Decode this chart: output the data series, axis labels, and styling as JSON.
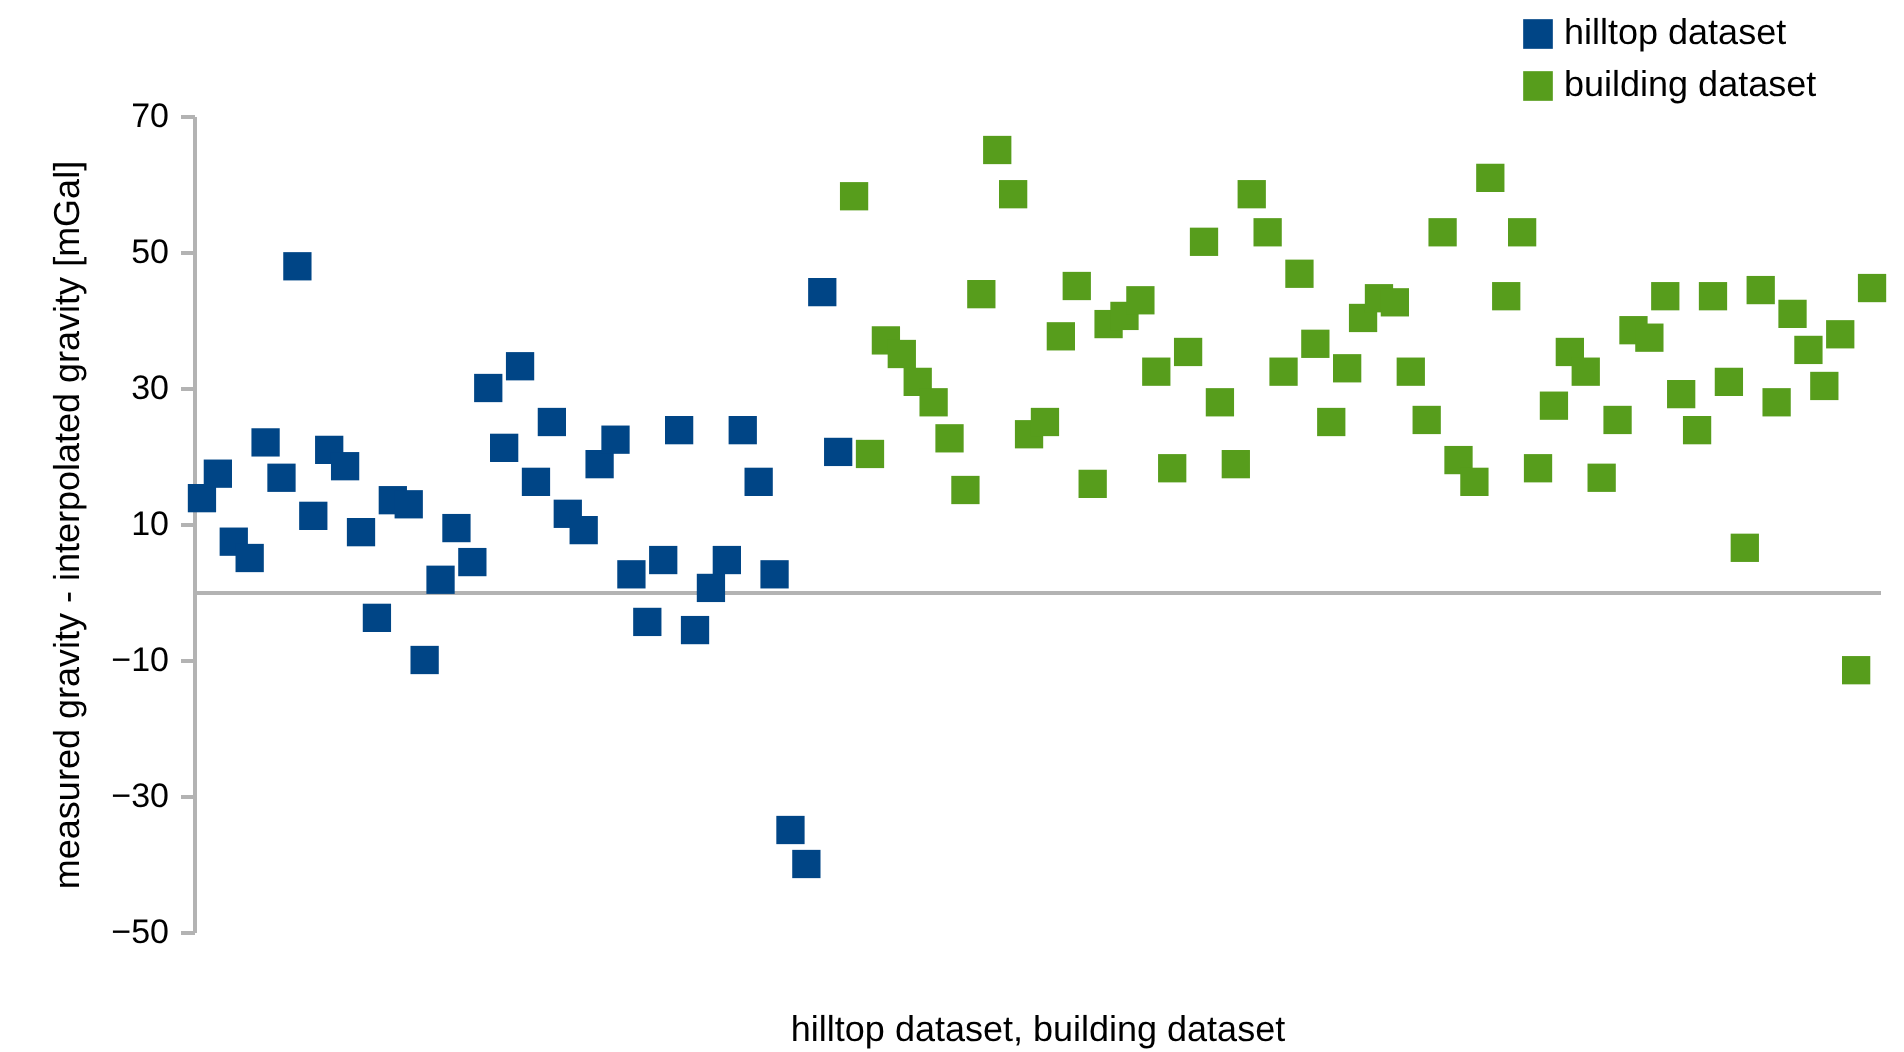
{
  "chart_data": {
    "type": "scatter",
    "xlabel": "hilltop dataset, building dataset",
    "ylabel": "measured gravity - interpolated gravity [mGal]",
    "categories": [
      null,
      null,
      null,
      null,
      null,
      null,
      null,
      null,
      null,
      null,
      null,
      null,
      null,
      null,
      null,
      null,
      null,
      null,
      null,
      null,
      null,
      null,
      null,
      null,
      null,
      null,
      null,
      null,
      null,
      null,
      null,
      null,
      null,
      null,
      null,
      null,
      null,
      null,
      null,
      null,
      null,
      null,
      null,
      null,
      null,
      null,
      null,
      null,
      null,
      null,
      null,
      null,
      null,
      null,
      null,
      null,
      null,
      null,
      null,
      null,
      null,
      null,
      null,
      null,
      null,
      null,
      null,
      null,
      null,
      null,
      null,
      null,
      null,
      null,
      null,
      null,
      null,
      null,
      null,
      null,
      null,
      null,
      null,
      null,
      null,
      null,
      null,
      null,
      null,
      null,
      null,
      null,
      null,
      null,
      null,
      null,
      null,
      null,
      null,
      null,
      null,
      null,
      null,
      null,
      null,
      null
    ],
    "series": [
      {
        "name": "hilltop dataset",
        "color": "#004586",
        "values": [
          13.8,
          17.4,
          7.4,
          5,
          22,
          16.8,
          47.9,
          11.2,
          20.9,
          18.5,
          8.8,
          -3.8,
          13.5,
          12.9,
          -10,
          1.8,
          9.4,
          4.4,
          30,
          21.2,
          33.2,
          16.2,
          25,
          11.5,
          9.1,
          18.8,
          22.4,
          2.6,
          -4.4,
          4.7,
          23.8,
          -5.6,
          0.6,
          4.7,
          23.8,
          16.2,
          2.6,
          -35,
          -40,
          44.1,
          20.6,
          null,
          null,
          null,
          null,
          null,
          null,
          null,
          null,
          null,
          null,
          null,
          null,
          null,
          null,
          null,
          null,
          null,
          null,
          null,
          null,
          null,
          null,
          null,
          null,
          null,
          null,
          null,
          null,
          null,
          null,
          null,
          null,
          null,
          null,
          null,
          null,
          null,
          null,
          null,
          null,
          null,
          null,
          null,
          null,
          null,
          null,
          null,
          null,
          null,
          null,
          null,
          null,
          null,
          null,
          null,
          null,
          null,
          null,
          null,
          null,
          null,
          null,
          null,
          null,
          null
        ]
      },
      {
        "name": "building dataset",
        "color": "#579d1c",
        "values": [
          null,
          null,
          null,
          null,
          null,
          null,
          null,
          null,
          null,
          null,
          null,
          null,
          null,
          null,
          null,
          null,
          null,
          null,
          null,
          null,
          null,
          null,
          null,
          null,
          null,
          null,
          null,
          null,
          null,
          null,
          null,
          null,
          null,
          null,
          null,
          null,
          null,
          null,
          null,
          null,
          null,
          58.2,
          20.3,
          37,
          35,
          30.9,
          27.9,
          22.6,
          15,
          43.8,
          65,
          58.5,
          23.2,
          25,
          37.6,
          45,
          15.9,
          39.4,
          40.6,
          42.9,
          32.4,
          18.2,
          35.3,
          51.5,
          27.9,
          18.8,
          58.5,
          52.9,
          32.4,
          46.8,
          36.5,
          25,
          32.9,
          40.3,
          43.2,
          42.6,
          32.4,
          25.3,
          52.9,
          19.4,
          16.2,
          60.9,
          43.5,
          52.9,
          18.2,
          27.4,
          35.3,
          32.4,
          16.8,
          25.3,
          38.5,
          37.4,
          43.5,
          29.1,
          23.8,
          43.5,
          30.9,
          6.5,
          44.4,
          27.9,
          40.9,
          35.6,
          30.3,
          37.9,
          -11.5,
          44.7
        ]
      }
    ],
    "ylim": [
      -50,
      70
    ],
    "yticks": [
      -50,
      -30,
      -10,
      10,
      30,
      50,
      70
    ],
    "grid": false,
    "legend": "top right",
    "marker": "square"
  }
}
